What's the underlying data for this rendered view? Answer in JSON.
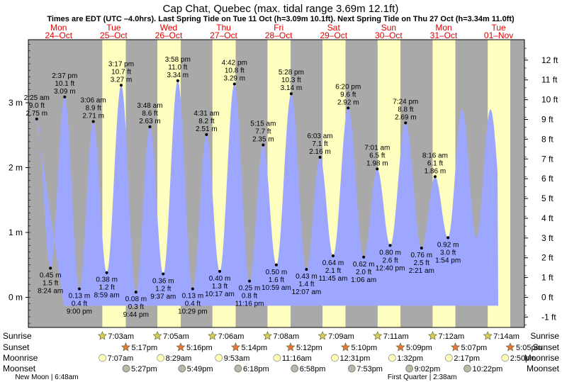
{
  "chart_data": {
    "type": "area",
    "title": "Cap Chat, Quebec (max. tidal range 3.69m 12.1ft)",
    "subtitle": "Times are EDT (UTC –4.0hrs). Last Spring Tide on Tue 11 Oct (h=3.09m 10.1ft). Next Spring Tide on Thu 27 Oct (h=3.34m 11.0ft)",
    "y_left_unit": "m",
    "y_right_unit": "ft",
    "ylim_m": [
      -0.45,
      4.0
    ],
    "y_left_ticks": [
      {
        "v": 0,
        "label": "0 m"
      },
      {
        "v": 1,
        "label": "1 m"
      },
      {
        "v": 2,
        "label": "2 m"
      },
      {
        "v": 3,
        "label": "3 m"
      }
    ],
    "y_right_ticks": [
      {
        "v": -1,
        "label": "-1 ft"
      },
      {
        "v": 0,
        "label": "0 ft"
      },
      {
        "v": 1,
        "label": "1 ft"
      },
      {
        "v": 2,
        "label": "2 ft"
      },
      {
        "v": 3,
        "label": "3 ft"
      },
      {
        "v": 4,
        "label": "4 ft"
      },
      {
        "v": 5,
        "label": "5 ft"
      },
      {
        "v": 6,
        "label": "6 ft"
      },
      {
        "v": 7,
        "label": "7 ft"
      },
      {
        "v": 8,
        "label": "8 ft"
      },
      {
        "v": 9,
        "label": "9 ft"
      },
      {
        "v": 10,
        "label": "10 ft"
      },
      {
        "v": 11,
        "label": "11 ft"
      },
      {
        "v": 12,
        "label": "12 ft"
      }
    ],
    "days": [
      {
        "dow": "Mon",
        "date": "24–Oct",
        "sunrise": null,
        "sunset": null,
        "moonrise": null,
        "moonset": null
      },
      {
        "dow": "Tue",
        "date": "25–Oct",
        "sunrise": "7:03am",
        "sunset": "5:17pm",
        "moonrise": "7:07am",
        "moonset": "5:27pm"
      },
      {
        "dow": "Wed",
        "date": "26–Oct",
        "sunrise": "7:05am",
        "sunset": "5:16pm",
        "moonrise": "8:29am",
        "moonset": "5:49pm"
      },
      {
        "dow": "Thu",
        "date": "27–Oct",
        "sunrise": "7:06am",
        "sunset": "5:14pm",
        "moonrise": "9:53am",
        "moonset": "6:18pm"
      },
      {
        "dow": "Fri",
        "date": "28–Oct",
        "sunrise": "7:08am",
        "sunset": "5:12pm",
        "moonrise": "11:16am",
        "moonset": "6:58pm"
      },
      {
        "dow": "Sat",
        "date": "29–Oct",
        "sunrise": "7:09am",
        "sunset": "5:10pm",
        "moonrise": "12:31pm",
        "moonset": "7:53pm"
      },
      {
        "dow": "Sun",
        "date": "30–Oct",
        "sunrise": "7:11am",
        "sunset": "5:09pm",
        "moonrise": "1:32pm",
        "moonset": "9:02pm"
      },
      {
        "dow": "Mon",
        "date": "31–Oct",
        "sunrise": "7:12am",
        "sunset": "5:07pm",
        "moonrise": "2:17pm",
        "moonset": "10:22pm"
      },
      {
        "dow": "Tue",
        "date": "01–Nov",
        "sunrise": "7:14am",
        "sunset": "5:05pm",
        "moonrise": "2:50pm",
        "moonset": null
      }
    ],
    "tides": [
      {
        "type": "high",
        "day": 0,
        "time": "2:25 am",
        "ft": "9.0 ft",
        "m": "2.75 m",
        "h": 2.75,
        "hour": 2.42
      },
      {
        "type": "low",
        "day": 0,
        "time": "8:24 am",
        "ft": "1.5 ft",
        "m": "0.45 m",
        "h": 0.45,
        "hour": 8.4
      },
      {
        "type": "high",
        "day": 0,
        "time": "2:37 pm",
        "ft": "10.1 ft",
        "m": "3.09 m",
        "h": 3.09,
        "hour": 14.62
      },
      {
        "type": "low",
        "day": 0,
        "time": "9:00 pm",
        "ft": "0.4 ft",
        "m": "0.13 m",
        "h": 0.13,
        "hour": 21.0
      },
      {
        "type": "high",
        "day": 1,
        "time": "3:06 am",
        "ft": "8.9 ft",
        "m": "2.71 m",
        "h": 2.71,
        "hour": 3.1
      },
      {
        "type": "low",
        "day": 1,
        "time": "8:59 am",
        "ft": "1.2 ft",
        "m": "0.38 m",
        "h": 0.38,
        "hour": 8.98
      },
      {
        "type": "high",
        "day": 1,
        "time": "3:17 pm",
        "ft": "10.7 ft",
        "m": "3.27 m",
        "h": 3.27,
        "hour": 15.28
      },
      {
        "type": "low",
        "day": 1,
        "time": "9:44 pm",
        "ft": "0.3 ft",
        "m": "0.08 m",
        "h": 0.08,
        "hour": 21.73
      },
      {
        "type": "high",
        "day": 2,
        "time": "3:48 am",
        "ft": "8.6 ft",
        "m": "2.63 m",
        "h": 2.63,
        "hour": 3.8
      },
      {
        "type": "low",
        "day": 2,
        "time": "9:37 am",
        "ft": "1.2 ft",
        "m": "0.36 m",
        "h": 0.36,
        "hour": 9.62
      },
      {
        "type": "high",
        "day": 2,
        "time": "3:58 pm",
        "ft": "11.0 ft",
        "m": "3.34 m",
        "h": 3.34,
        "hour": 15.97
      },
      {
        "type": "low",
        "day": 2,
        "time": "10:29 pm",
        "ft": "0.4 ft",
        "m": "0.13 m",
        "h": 0.13,
        "hour": 22.48
      },
      {
        "type": "high",
        "day": 3,
        "time": "4:31 am",
        "ft": "8.2 ft",
        "m": "2.51 m",
        "h": 2.51,
        "hour": 4.52
      },
      {
        "type": "low",
        "day": 3,
        "time": "10:17 am",
        "ft": "1.3 ft",
        "m": "0.40 m",
        "h": 0.4,
        "hour": 10.28
      },
      {
        "type": "high",
        "day": 3,
        "time": "4:42 pm",
        "ft": "10.8 ft",
        "m": "3.29 m",
        "h": 3.29,
        "hour": 16.7
      },
      {
        "type": "low",
        "day": 3,
        "time": "11:16 pm",
        "ft": "0.8 ft",
        "m": "0.25 m",
        "h": 0.25,
        "hour": 23.27
      },
      {
        "type": "high",
        "day": 4,
        "time": "5:15 am",
        "ft": "7.7 ft",
        "m": "2.35 m",
        "h": 2.35,
        "hour": 5.25
      },
      {
        "type": "low",
        "day": 4,
        "time": "10:59 am",
        "ft": "1.6 ft",
        "m": "0.50 m",
        "h": 0.5,
        "hour": 10.98
      },
      {
        "type": "high",
        "day": 4,
        "time": "5:28 pm",
        "ft": "10.3 ft",
        "m": "3.14 m",
        "h": 3.14,
        "hour": 17.47
      },
      {
        "type": "low",
        "day": 5,
        "time": "12:07 am",
        "ft": "1.4 ft",
        "m": "0.43 m",
        "h": 0.43,
        "hour": 0.12
      },
      {
        "type": "high",
        "day": 5,
        "time": "6:03 am",
        "ft": "7.1 ft",
        "m": "2.16 m",
        "h": 2.16,
        "hour": 6.05
      },
      {
        "type": "low",
        "day": 5,
        "time": "11:45 am",
        "ft": "2.1 ft",
        "m": "0.64 m",
        "h": 0.64,
        "hour": 11.75
      },
      {
        "type": "high",
        "day": 5,
        "time": "6:20 pm",
        "ft": "9.6 ft",
        "m": "2.92 m",
        "h": 2.92,
        "hour": 18.33
      },
      {
        "type": "low",
        "day": 6,
        "time": "1:06 am",
        "ft": "2.0 ft",
        "m": "0.62 m",
        "h": 0.62,
        "hour": 1.1
      },
      {
        "type": "high",
        "day": 6,
        "time": "7:01 am",
        "ft": "6.5 ft",
        "m": "1.98 m",
        "h": 1.98,
        "hour": 7.02
      },
      {
        "type": "low",
        "day": 6,
        "time": "12:40 pm",
        "ft": "2.6 ft",
        "m": "0.80 m",
        "h": 0.8,
        "hour": 12.67
      },
      {
        "type": "high",
        "day": 6,
        "time": "7:24 pm",
        "ft": "8.8 ft",
        "m": "2.69 m",
        "h": 2.69,
        "hour": 19.4
      },
      {
        "type": "low",
        "day": 7,
        "time": "2:21 am",
        "ft": "2.5 ft",
        "m": "0.76 m",
        "h": 0.76,
        "hour": 2.35
      },
      {
        "type": "high",
        "day": 7,
        "time": "8:16 am",
        "ft": "6.1 ft",
        "m": "1.86 m",
        "h": 1.86,
        "hour": 8.27
      },
      {
        "type": "low",
        "day": 7,
        "time": "1:54 pm",
        "ft": "3.0 ft",
        "m": "0.92 m",
        "h": 0.92,
        "hour": 13.9
      }
    ],
    "row_labels": {
      "sunrise": "Sunrise",
      "sunset": "Sunset",
      "moonrise": "Moonrise",
      "moonset": "Moonset"
    },
    "moon_phases": [
      {
        "text": "New Moon | 6:48am",
        "day": 0,
        "hour": 6.8
      },
      {
        "text": "First Quarter | 2:38am",
        "day": 7,
        "hour": 2.63
      }
    ],
    "colors": {
      "night": "#a9a9a9",
      "day": "#ffffc0",
      "water": "#9ea7ff",
      "frame": "#000000",
      "date_label": "#e00000",
      "sun_marker": "#d6cf56",
      "sunset_marker": "#e8763a",
      "moonrise_marker": "#ffffb8",
      "moonset_marker": "#b8b8a8"
    }
  }
}
